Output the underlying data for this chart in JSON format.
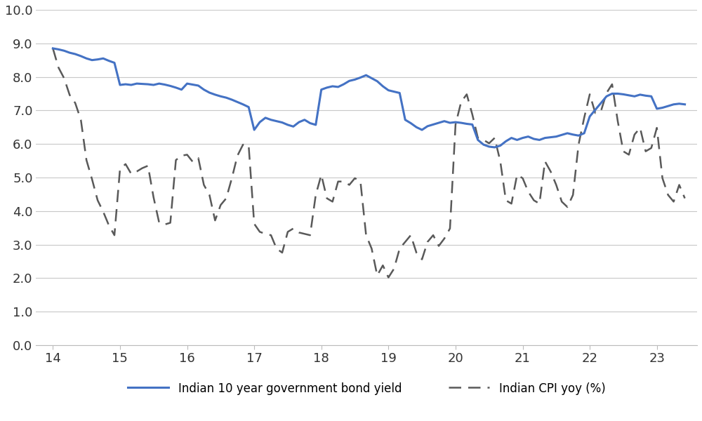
{
  "bond_x": [
    14.0,
    14.083,
    14.167,
    14.25,
    14.333,
    14.417,
    14.5,
    14.583,
    14.667,
    14.75,
    14.833,
    14.917,
    15.0,
    15.083,
    15.167,
    15.25,
    15.333,
    15.417,
    15.5,
    15.583,
    15.667,
    15.75,
    15.833,
    15.917,
    16.0,
    16.083,
    16.167,
    16.25,
    16.333,
    16.417,
    16.5,
    16.583,
    16.667,
    16.75,
    16.833,
    16.917,
    17.0,
    17.083,
    17.167,
    17.25,
    17.333,
    17.417,
    17.5,
    17.583,
    17.667,
    17.75,
    17.833,
    17.917,
    18.0,
    18.083,
    18.167,
    18.25,
    18.333,
    18.417,
    18.5,
    18.583,
    18.667,
    18.75,
    18.833,
    18.917,
    19.0,
    19.083,
    19.167,
    19.25,
    19.333,
    19.417,
    19.5,
    19.583,
    19.667,
    19.75,
    19.833,
    19.917,
    20.0,
    20.083,
    20.167,
    20.25,
    20.333,
    20.417,
    20.5,
    20.583,
    20.667,
    20.75,
    20.833,
    20.917,
    21.0,
    21.083,
    21.167,
    21.25,
    21.333,
    21.417,
    21.5,
    21.583,
    21.667,
    21.75,
    21.833,
    21.917,
    22.0,
    22.083,
    22.167,
    22.25,
    22.333,
    22.417,
    22.5,
    22.583,
    22.667,
    22.75,
    22.833,
    22.917,
    23.0,
    23.083,
    23.167,
    23.25,
    23.333,
    23.417
  ],
  "bond_y": [
    8.85,
    8.82,
    8.78,
    8.72,
    8.68,
    8.62,
    8.55,
    8.5,
    8.52,
    8.55,
    8.48,
    8.42,
    7.76,
    7.78,
    7.76,
    7.8,
    7.79,
    7.78,
    7.76,
    7.8,
    7.77,
    7.73,
    7.68,
    7.62,
    7.8,
    7.77,
    7.74,
    7.62,
    7.53,
    7.47,
    7.42,
    7.38,
    7.32,
    7.25,
    7.18,
    7.1,
    6.42,
    6.65,
    6.78,
    6.72,
    6.68,
    6.64,
    6.57,
    6.52,
    6.65,
    6.72,
    6.62,
    6.57,
    7.62,
    7.68,
    7.72,
    7.7,
    7.78,
    7.88,
    7.92,
    7.98,
    8.05,
    7.96,
    7.87,
    7.72,
    7.6,
    7.56,
    7.52,
    6.72,
    6.62,
    6.5,
    6.42,
    6.53,
    6.58,
    6.63,
    6.68,
    6.63,
    6.65,
    6.63,
    6.6,
    6.58,
    6.12,
    5.98,
    5.92,
    5.9,
    5.95,
    6.08,
    6.18,
    6.12,
    6.18,
    6.22,
    6.15,
    6.12,
    6.18,
    6.2,
    6.22,
    6.27,
    6.32,
    6.28,
    6.25,
    6.32,
    6.82,
    7.02,
    7.22,
    7.42,
    7.5,
    7.5,
    7.48,
    7.45,
    7.42,
    7.47,
    7.44,
    7.42,
    7.05,
    7.08,
    7.13,
    7.18,
    7.2,
    7.18
  ],
  "cpi_x": [
    14.0,
    14.083,
    14.167,
    14.25,
    14.333,
    14.417,
    14.5,
    14.583,
    14.667,
    14.75,
    14.833,
    14.917,
    15.0,
    15.083,
    15.167,
    15.25,
    15.333,
    15.417,
    15.5,
    15.583,
    15.667,
    15.75,
    15.833,
    15.917,
    16.0,
    16.083,
    16.167,
    16.25,
    16.333,
    16.417,
    16.5,
    16.583,
    16.667,
    16.75,
    16.833,
    16.917,
    17.0,
    17.083,
    17.167,
    17.25,
    17.333,
    17.417,
    17.5,
    17.583,
    17.667,
    17.75,
    17.833,
    17.917,
    18.0,
    18.083,
    18.167,
    18.25,
    18.333,
    18.417,
    18.5,
    18.583,
    18.667,
    18.75,
    18.833,
    18.917,
    19.0,
    19.083,
    19.167,
    19.25,
    19.333,
    19.417,
    19.5,
    19.583,
    19.667,
    19.75,
    19.833,
    19.917,
    20.0,
    20.083,
    20.167,
    20.25,
    20.333,
    20.417,
    20.5,
    20.583,
    20.667,
    20.75,
    20.833,
    20.917,
    21.0,
    21.083,
    21.167,
    21.25,
    21.333,
    21.417,
    21.5,
    21.583,
    21.667,
    21.75,
    21.833,
    21.917,
    22.0,
    22.083,
    22.167,
    22.25,
    22.333,
    22.417,
    22.5,
    22.583,
    22.667,
    22.75,
    22.833,
    22.917,
    23.0,
    23.083,
    23.167,
    23.25,
    23.333,
    23.417
  ],
  "cpi_y": [
    8.85,
    8.28,
    7.96,
    7.46,
    7.22,
    6.72,
    5.52,
    4.95,
    4.32,
    3.98,
    3.58,
    3.28,
    5.25,
    5.4,
    5.11,
    5.18,
    5.28,
    5.35,
    4.41,
    3.66,
    3.6,
    3.65,
    5.52,
    5.65,
    5.68,
    5.47,
    5.58,
    4.78,
    4.48,
    3.72,
    4.18,
    4.38,
    4.98,
    5.65,
    5.98,
    5.96,
    3.62,
    3.38,
    3.32,
    3.28,
    2.88,
    2.76,
    3.38,
    3.48,
    3.36,
    3.32,
    3.28,
    4.48,
    5.08,
    4.38,
    4.28,
    4.88,
    4.88,
    4.78,
    4.98,
    4.88,
    3.28,
    2.88,
    2.08,
    2.38,
    2.02,
    2.28,
    2.88,
    3.08,
    3.28,
    2.76,
    2.56,
    3.08,
    3.28,
    2.96,
    3.18,
    3.48,
    6.58,
    7.25,
    7.48,
    6.88,
    6.18,
    6.12,
    6.02,
    6.18,
    5.48,
    4.32,
    4.22,
    5.08,
    4.98,
    4.58,
    4.32,
    4.22,
    5.48,
    5.18,
    4.78,
    4.28,
    4.12,
    4.48,
    5.98,
    6.78,
    7.48,
    6.92,
    6.98,
    7.52,
    7.78,
    6.68,
    5.78,
    5.68,
    6.28,
    6.48,
    5.78,
    5.88,
    6.48,
    4.98,
    4.48,
    4.28,
    4.78,
    4.38
  ],
  "bond_color": "#4472c4",
  "cpi_color": "#595959",
  "bond_label": "Indian 10 year government bond yield",
  "cpi_label": "Indian CPI yoy (%)",
  "ylim": [
    0.0,
    10.0
  ],
  "xlim": [
    13.75,
    23.6
  ],
  "yticks": [
    0.0,
    1.0,
    2.0,
    3.0,
    4.0,
    5.0,
    6.0,
    7.0,
    8.0,
    9.0,
    10.0
  ],
  "xticks": [
    14,
    15,
    16,
    17,
    18,
    19,
    20,
    21,
    22,
    23
  ],
  "background_color": "#ffffff",
  "grid_color": "#c8c8c8",
  "tick_fontsize": 13,
  "legend_fontsize": 12
}
